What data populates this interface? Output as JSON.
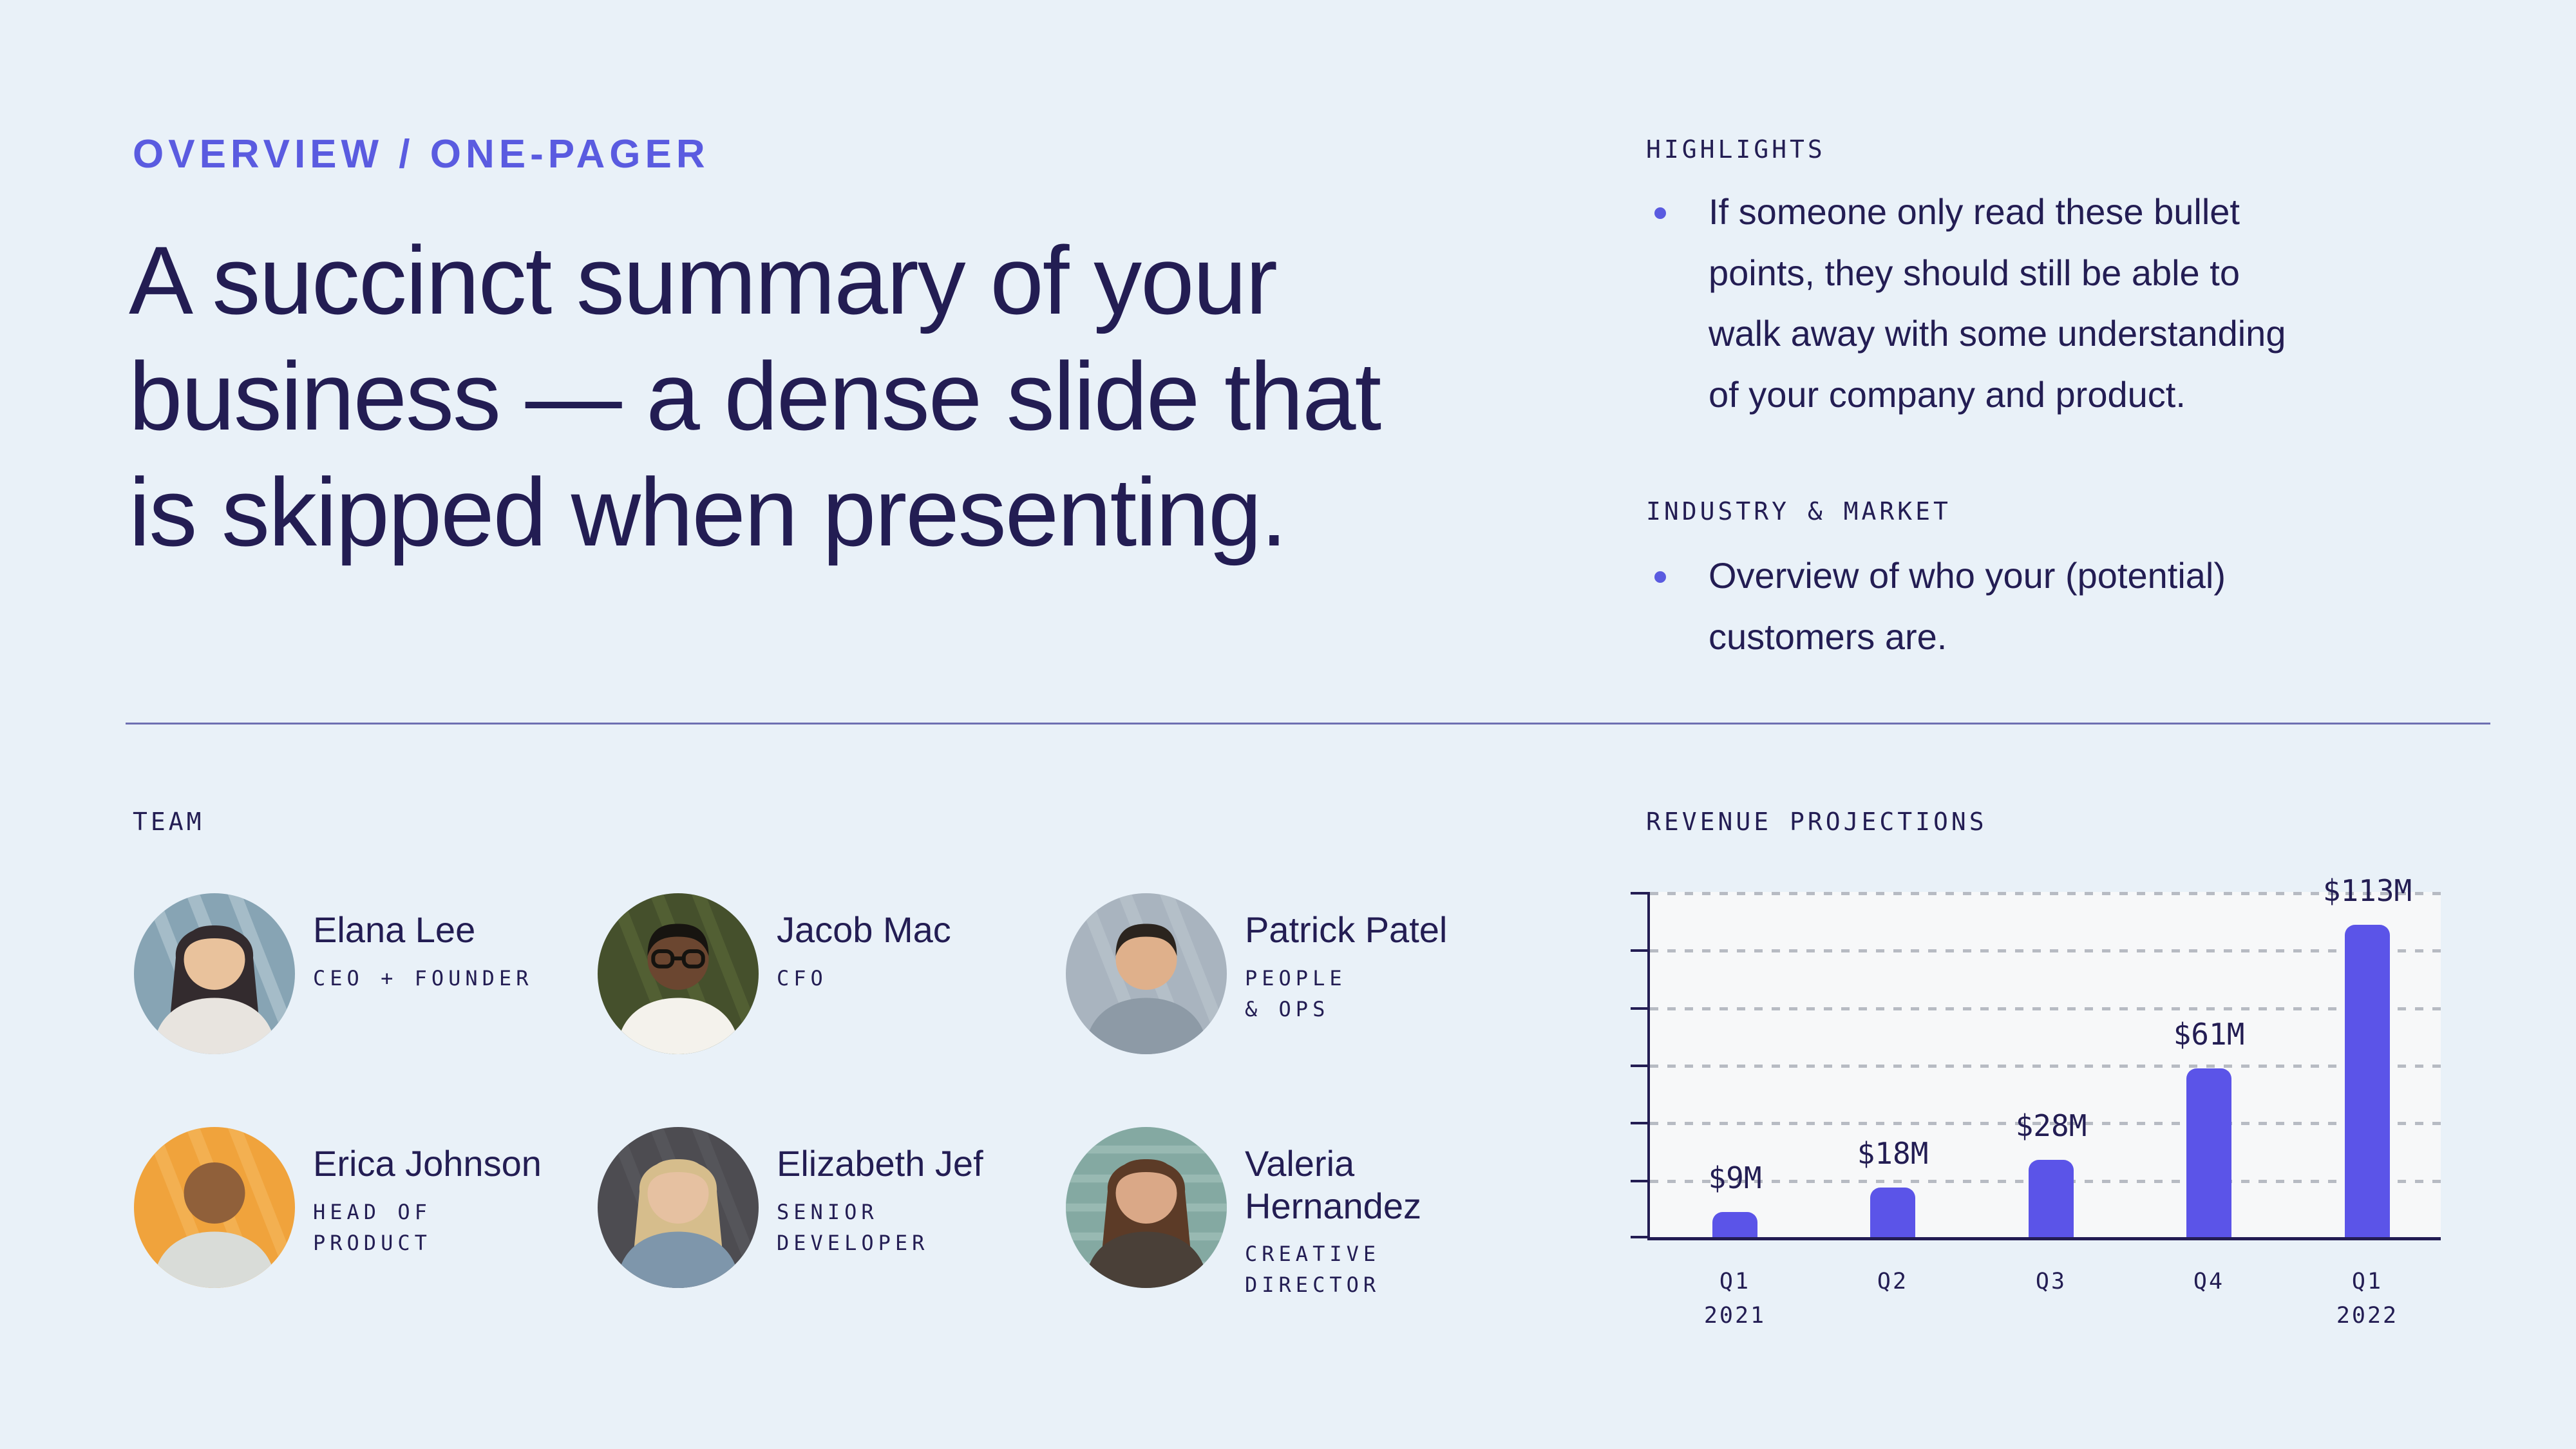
{
  "colors": {
    "page_bg": "#e9f1f8",
    "ink": "#231d53",
    "accent_purple": "#5a5be0",
    "bar_purple": "#5b54e8",
    "plot_bg": "#f7f8f9",
    "gridline_gray": "#b7bbc3",
    "divider": "#6e6fb2"
  },
  "header": {
    "eyebrow": "OVERVIEW / ONE-PAGER",
    "headline": "A succinct summary of your\nbusiness — a dense slide that\nis skipped when presenting."
  },
  "highlights": {
    "label": "HIGHLIGHTS",
    "bullet": "If someone only read these bullet\npoints, they should still be able to\nwalk away with some understanding\nof your company and product."
  },
  "industry": {
    "label": "INDUSTRY & MARKET",
    "bullet": "Overview of who your (potential)\ncustomers are."
  },
  "team": {
    "label": "TEAM",
    "members": [
      {
        "name": "Elana Lee",
        "role": "CEO + FOUNDER",
        "avatar": {
          "photo": "woman-long-dark-hair-teal-blinds-background",
          "bg": "#87a4b4",
          "bg2": "#b9cdd6",
          "pattern": "diagonal",
          "skin": "#e9c29c",
          "hair": "#332b2e",
          "shirt": "#e8e4df",
          "hairstyle": "long",
          "glasses": false
        }
      },
      {
        "name": "Jacob Mac",
        "role": "CFO",
        "avatar": {
          "photo": "man-glasses-white-shirt-dark-green-background",
          "bg": "#45502c",
          "bg2": "#5c6a3a",
          "pattern": "diagonal",
          "skin": "#6b4630",
          "hair": "#171410",
          "shirt": "#f4f2ec",
          "hairstyle": "short",
          "glasses": true
        }
      },
      {
        "name": "Patrick Patel",
        "role": "PEOPLE\n& OPS",
        "avatar": {
          "photo": "man-dark-hair-gray-background",
          "bg": "#a9b4bf",
          "bg2": "#bcc6cf",
          "pattern": "diagonal",
          "skin": "#dfb08b",
          "hair": "#2b241e",
          "shirt": "#8d9aa6",
          "hairstyle": "short",
          "glasses": false
        }
      },
      {
        "name": "Erica Johnson",
        "role": "HEAD OF\nPRODUCT",
        "avatar": {
          "photo": "laughing-woman-shaved-head-orange-background",
          "bg": "#f0a33c",
          "bg2": "#f6b95f",
          "pattern": "diagonal",
          "skin": "#90603a",
          "hair": "#3a2a20",
          "shirt": "#d9dcd8",
          "hairstyle": "bald",
          "glasses": false
        }
      },
      {
        "name": "Elizabeth Jef",
        "role": "SENIOR\nDEVELOPER",
        "avatar": {
          "photo": "blonde-woman-denim-jacket-dark-background",
          "bg": "#4d4c51",
          "bg2": "#5d5c62",
          "pattern": "diagonal",
          "skin": "#e6c1a1",
          "hair": "#d6bd8c",
          "shirt": "#7e96ab",
          "hairstyle": "long",
          "glasses": false
        }
      },
      {
        "name": "Valeria\nHernandez",
        "role": "CREATIVE\nDIRECTOR",
        "avatar": {
          "photo": "woman-long-brown-hair-teal-corrugated-background",
          "bg": "#84a9a2",
          "bg2": "#a9c6bf",
          "pattern": "horizontal",
          "skin": "#daa887",
          "hair": "#5c3b27",
          "shirt": "#4a4038",
          "hairstyle": "long",
          "glasses": false
        }
      }
    ]
  },
  "chart_data": {
    "type": "bar",
    "title": "REVENUE PROJECTIONS",
    "categories": [
      "Q1\n2021",
      "Q2",
      "Q3",
      "Q4",
      "Q1\n2022"
    ],
    "values": [
      9,
      18,
      28,
      61,
      113
    ],
    "value_labels": [
      "$9M",
      "$18M",
      "$28M",
      "$61M",
      "$113M"
    ],
    "unit": "millions USD",
    "xlabel": "",
    "ylabel": "",
    "ylim": [
      0,
      125
    ],
    "gridline_count": 6,
    "grid_style": "dashed-horizontal",
    "legend": "none",
    "bar_color": "#5b54e8"
  }
}
